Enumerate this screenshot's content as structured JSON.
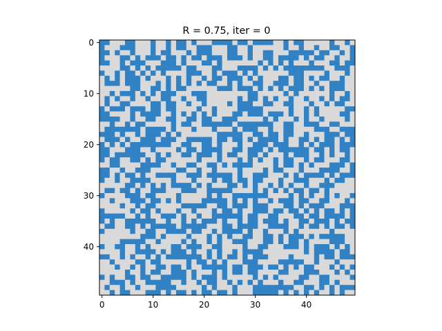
{
  "chart_data": {
    "type": "heatmap",
    "title": "R = 0.75, iter = 0",
    "xlabel": "",
    "ylabel": "",
    "grid": false,
    "legend": "none",
    "rows": 50,
    "cols": 50,
    "x_ticks": [
      0,
      10,
      20,
      30,
      40
    ],
    "y_ticks": [
      0,
      10,
      20,
      30,
      40
    ],
    "x_tick_labels": [
      "0",
      "10",
      "20",
      "30",
      "40"
    ],
    "y_tick_labels": [
      "0",
      "10",
      "20",
      "30",
      "40"
    ],
    "fraction_blue": 0.5,
    "colors": {
      "state_1": "#3182c4",
      "state_0": "#d9d9d9",
      "axes_edge": "#000000"
    },
    "seed": 12345
  }
}
